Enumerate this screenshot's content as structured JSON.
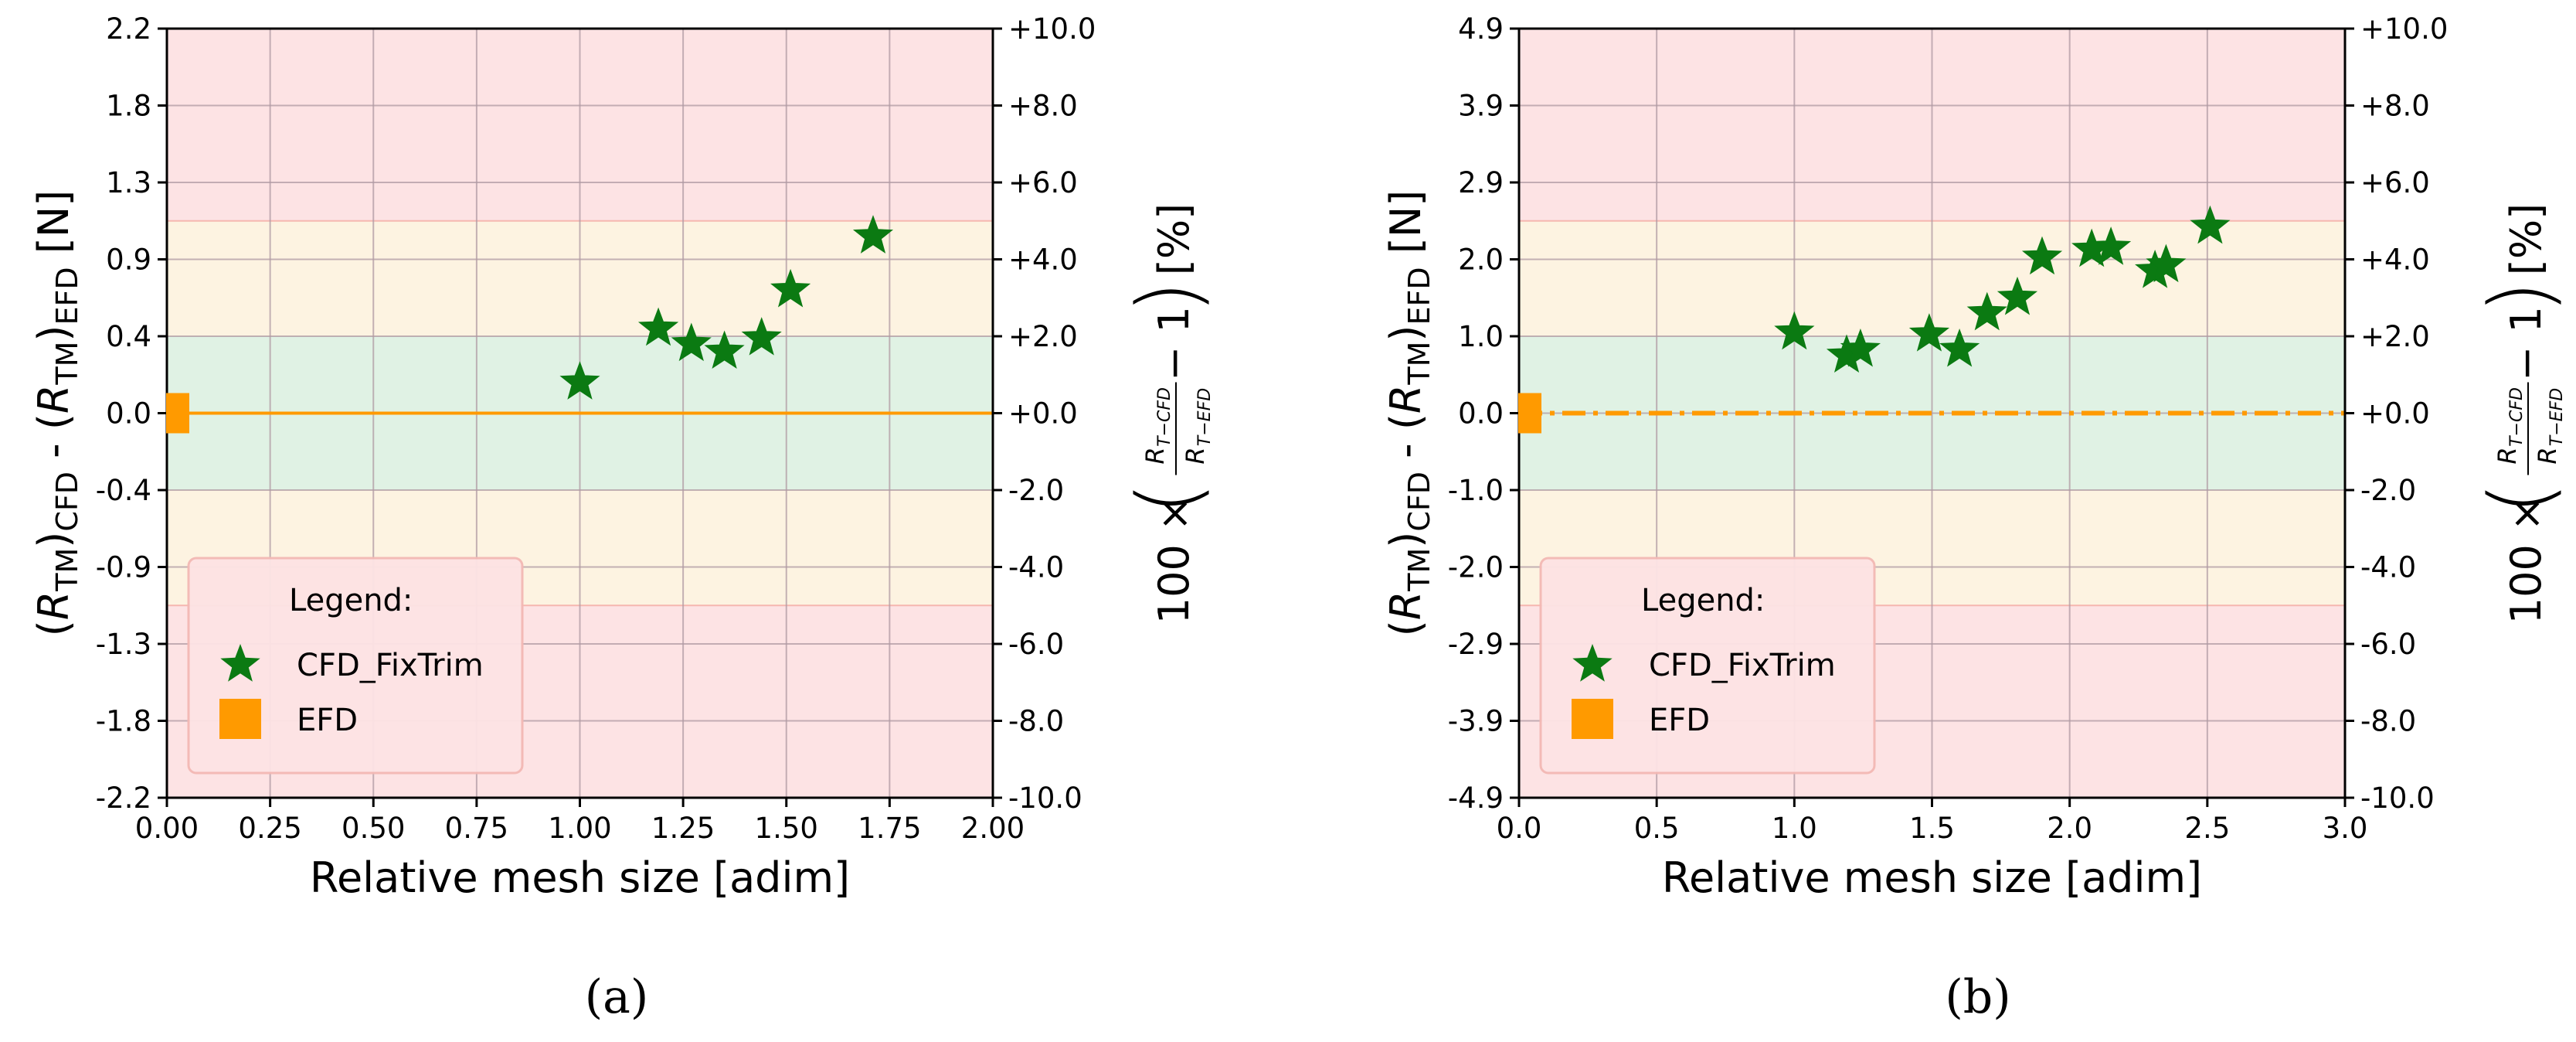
{
  "colors": {
    "red_zone": "#fde3e4",
    "yellow_zone": "#fdf3e1",
    "green_zone": "#e0f2e4",
    "cfd_marker": "#0b7a12",
    "efd_marker": "#ff9a00",
    "grid": "#b09aa3"
  },
  "icons": {
    "cfd": "star-marker",
    "efd": "square-marker"
  },
  "chart_data": [
    {
      "type": "scatter",
      "panel_label": "(a)",
      "xlabel": "Relative mesh size [adim]",
      "ylabel_left": "(R_TM)_CFD - (R_TM)_EFD [N]",
      "ylabel_right": "100 × (R_T−CFD / R_T−EFD − 1) [%]",
      "xlim": [
        0.0,
        2.0
      ],
      "ylim": [
        -10,
        10
      ],
      "y_unit": "percent",
      "xticks": [
        "0.00",
        "0.25",
        "0.50",
        "0.75",
        "1.00",
        "1.25",
        "1.50",
        "1.75",
        "2.00"
      ],
      "xtick_values": [
        0.0,
        0.25,
        0.5,
        0.75,
        1.0,
        1.25,
        1.5,
        1.75,
        2.0
      ],
      "left_ticks": [
        "2.2",
        "1.8",
        "1.3",
        "0.9",
        "0.4",
        "0.0",
        "-0.4",
        "-0.9",
        "-1.3",
        "-1.8",
        "-2.2"
      ],
      "right_ticks": [
        "+10.0",
        "+8.0",
        "+6.0",
        "+4.0",
        "+2.0",
        "+0.0",
        "-2.0",
        "-4.0",
        "-6.0",
        "-8.0",
        "-10.0"
      ],
      "tick_values": [
        10,
        8,
        6,
        4,
        2,
        0,
        -2,
        -4,
        -6,
        -8,
        -10
      ],
      "bands": [
        {
          "from": 5,
          "to": 10,
          "zone": "red"
        },
        {
          "from": 2,
          "to": 5,
          "zone": "yellow"
        },
        {
          "from": -2,
          "to": 2,
          "zone": "green"
        },
        {
          "from": -5,
          "to": -2,
          "zone": "yellow"
        },
        {
          "from": -10,
          "to": -5,
          "zone": "red"
        }
      ],
      "grid": true,
      "efd_line_style": "solid",
      "legend_position": "lower-left",
      "legend_title": "Legend:",
      "series": [
        {
          "name": "CFD_FixTrim",
          "marker": "star",
          "x": [
            1.0,
            1.19,
            1.27,
            1.35,
            1.44,
            1.51,
            1.71
          ],
          "y": [
            0.8,
            2.2,
            1.8,
            1.6,
            1.95,
            3.2,
            4.6
          ]
        },
        {
          "name": "EFD",
          "marker": "square",
          "x": [
            0.0
          ],
          "y": [
            0.0
          ]
        }
      ]
    },
    {
      "type": "scatter",
      "panel_label": "(b)",
      "xlabel": "Relative mesh size [adim]",
      "ylabel_left": "(R_TM)_CFD - (R_TM)_EFD [N]",
      "ylabel_right": "100 × (R_T−CFD / R_T−EFD − 1) [%]",
      "xlim": [
        0.0,
        3.0
      ],
      "ylim": [
        -10,
        10
      ],
      "y_unit": "percent",
      "xticks": [
        "0.0",
        "0.5",
        "1.0",
        "1.5",
        "2.0",
        "2.5",
        "3.0"
      ],
      "xtick_values": [
        0.0,
        0.5,
        1.0,
        1.5,
        2.0,
        2.5,
        3.0
      ],
      "left_ticks": [
        "4.9",
        "3.9",
        "2.9",
        "2.0",
        "1.0",
        "0.0",
        "-1.0",
        "-2.0",
        "-2.9",
        "-3.9",
        "-4.9"
      ],
      "right_ticks": [
        "+10.0",
        "+8.0",
        "+6.0",
        "+4.0",
        "+2.0",
        "+0.0",
        "-2.0",
        "-4.0",
        "-6.0",
        "-8.0",
        "-10.0"
      ],
      "tick_values": [
        10,
        8,
        6,
        4,
        2,
        0,
        -2,
        -4,
        -6,
        -8,
        -10
      ],
      "bands": [
        {
          "from": 5,
          "to": 10,
          "zone": "red"
        },
        {
          "from": 2,
          "to": 5,
          "zone": "yellow"
        },
        {
          "from": -2,
          "to": 2,
          "zone": "green"
        },
        {
          "from": -5,
          "to": -2,
          "zone": "yellow"
        },
        {
          "from": -10,
          "to": -5,
          "zone": "red"
        }
      ],
      "grid": true,
      "efd_line_style": "dash-dot",
      "legend_position": "lower-left",
      "legend_title": "Legend:",
      "series": [
        {
          "name": "CFD_FixTrim",
          "marker": "star",
          "x": [
            1.0,
            1.19,
            1.24,
            1.49,
            1.6,
            1.7,
            1.81,
            1.9,
            2.08,
            2.15,
            2.31,
            2.35,
            2.51
          ],
          "y": [
            2.1,
            1.5,
            1.65,
            2.05,
            1.65,
            2.6,
            3.0,
            4.05,
            4.25,
            4.3,
            3.7,
            3.85,
            4.85
          ]
        },
        {
          "name": "EFD",
          "marker": "square",
          "x": [
            0.0
          ],
          "y": [
            0.0
          ]
        }
      ]
    }
  ]
}
